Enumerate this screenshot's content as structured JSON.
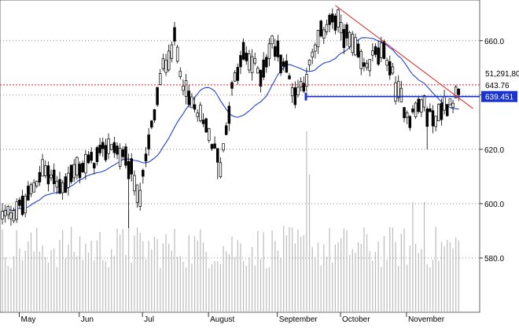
{
  "chart_data": {
    "type": "candlestick",
    "y_range": [
      560,
      675
    ],
    "y_ticks": [
      580,
      600,
      620,
      640,
      660
    ],
    "y_tick_labels": [
      "580.0",
      "600.0",
      "620.0",
      "640.0",
      "660.0"
    ],
    "x_month_labels": [
      {
        "label": "May",
        "index": 7
      },
      {
        "label": "Jun",
        "index": 29
      },
      {
        "label": "Jul",
        "index": 51
      },
      {
        "label": "August",
        "index": 74
      },
      {
        "label": "September",
        "index": 98
      },
      {
        "label": "October",
        "index": 120
      },
      {
        "label": "November",
        "index": 143
      }
    ],
    "price_labels": {
      "volume": "51,291,80",
      "last": "643.76",
      "support": "639.451"
    },
    "support_level": 639.45,
    "resistance_dotted_level": 643.76,
    "trendline": {
      "from": {
        "index": 116,
        "value": 673
      },
      "to": {
        "index": 164,
        "value": 635
      }
    },
    "ohlc_count": 160,
    "colors": {
      "up_candle": "#ffffff",
      "down_candle": "#000000",
      "moving_average": "#1f3fd6",
      "trendline": "#e02020",
      "support_line": "#1a33cc",
      "dotted_resistance": "#e02020",
      "volume_bars": "#bbbbbb",
      "grid": "#888888"
    }
  }
}
